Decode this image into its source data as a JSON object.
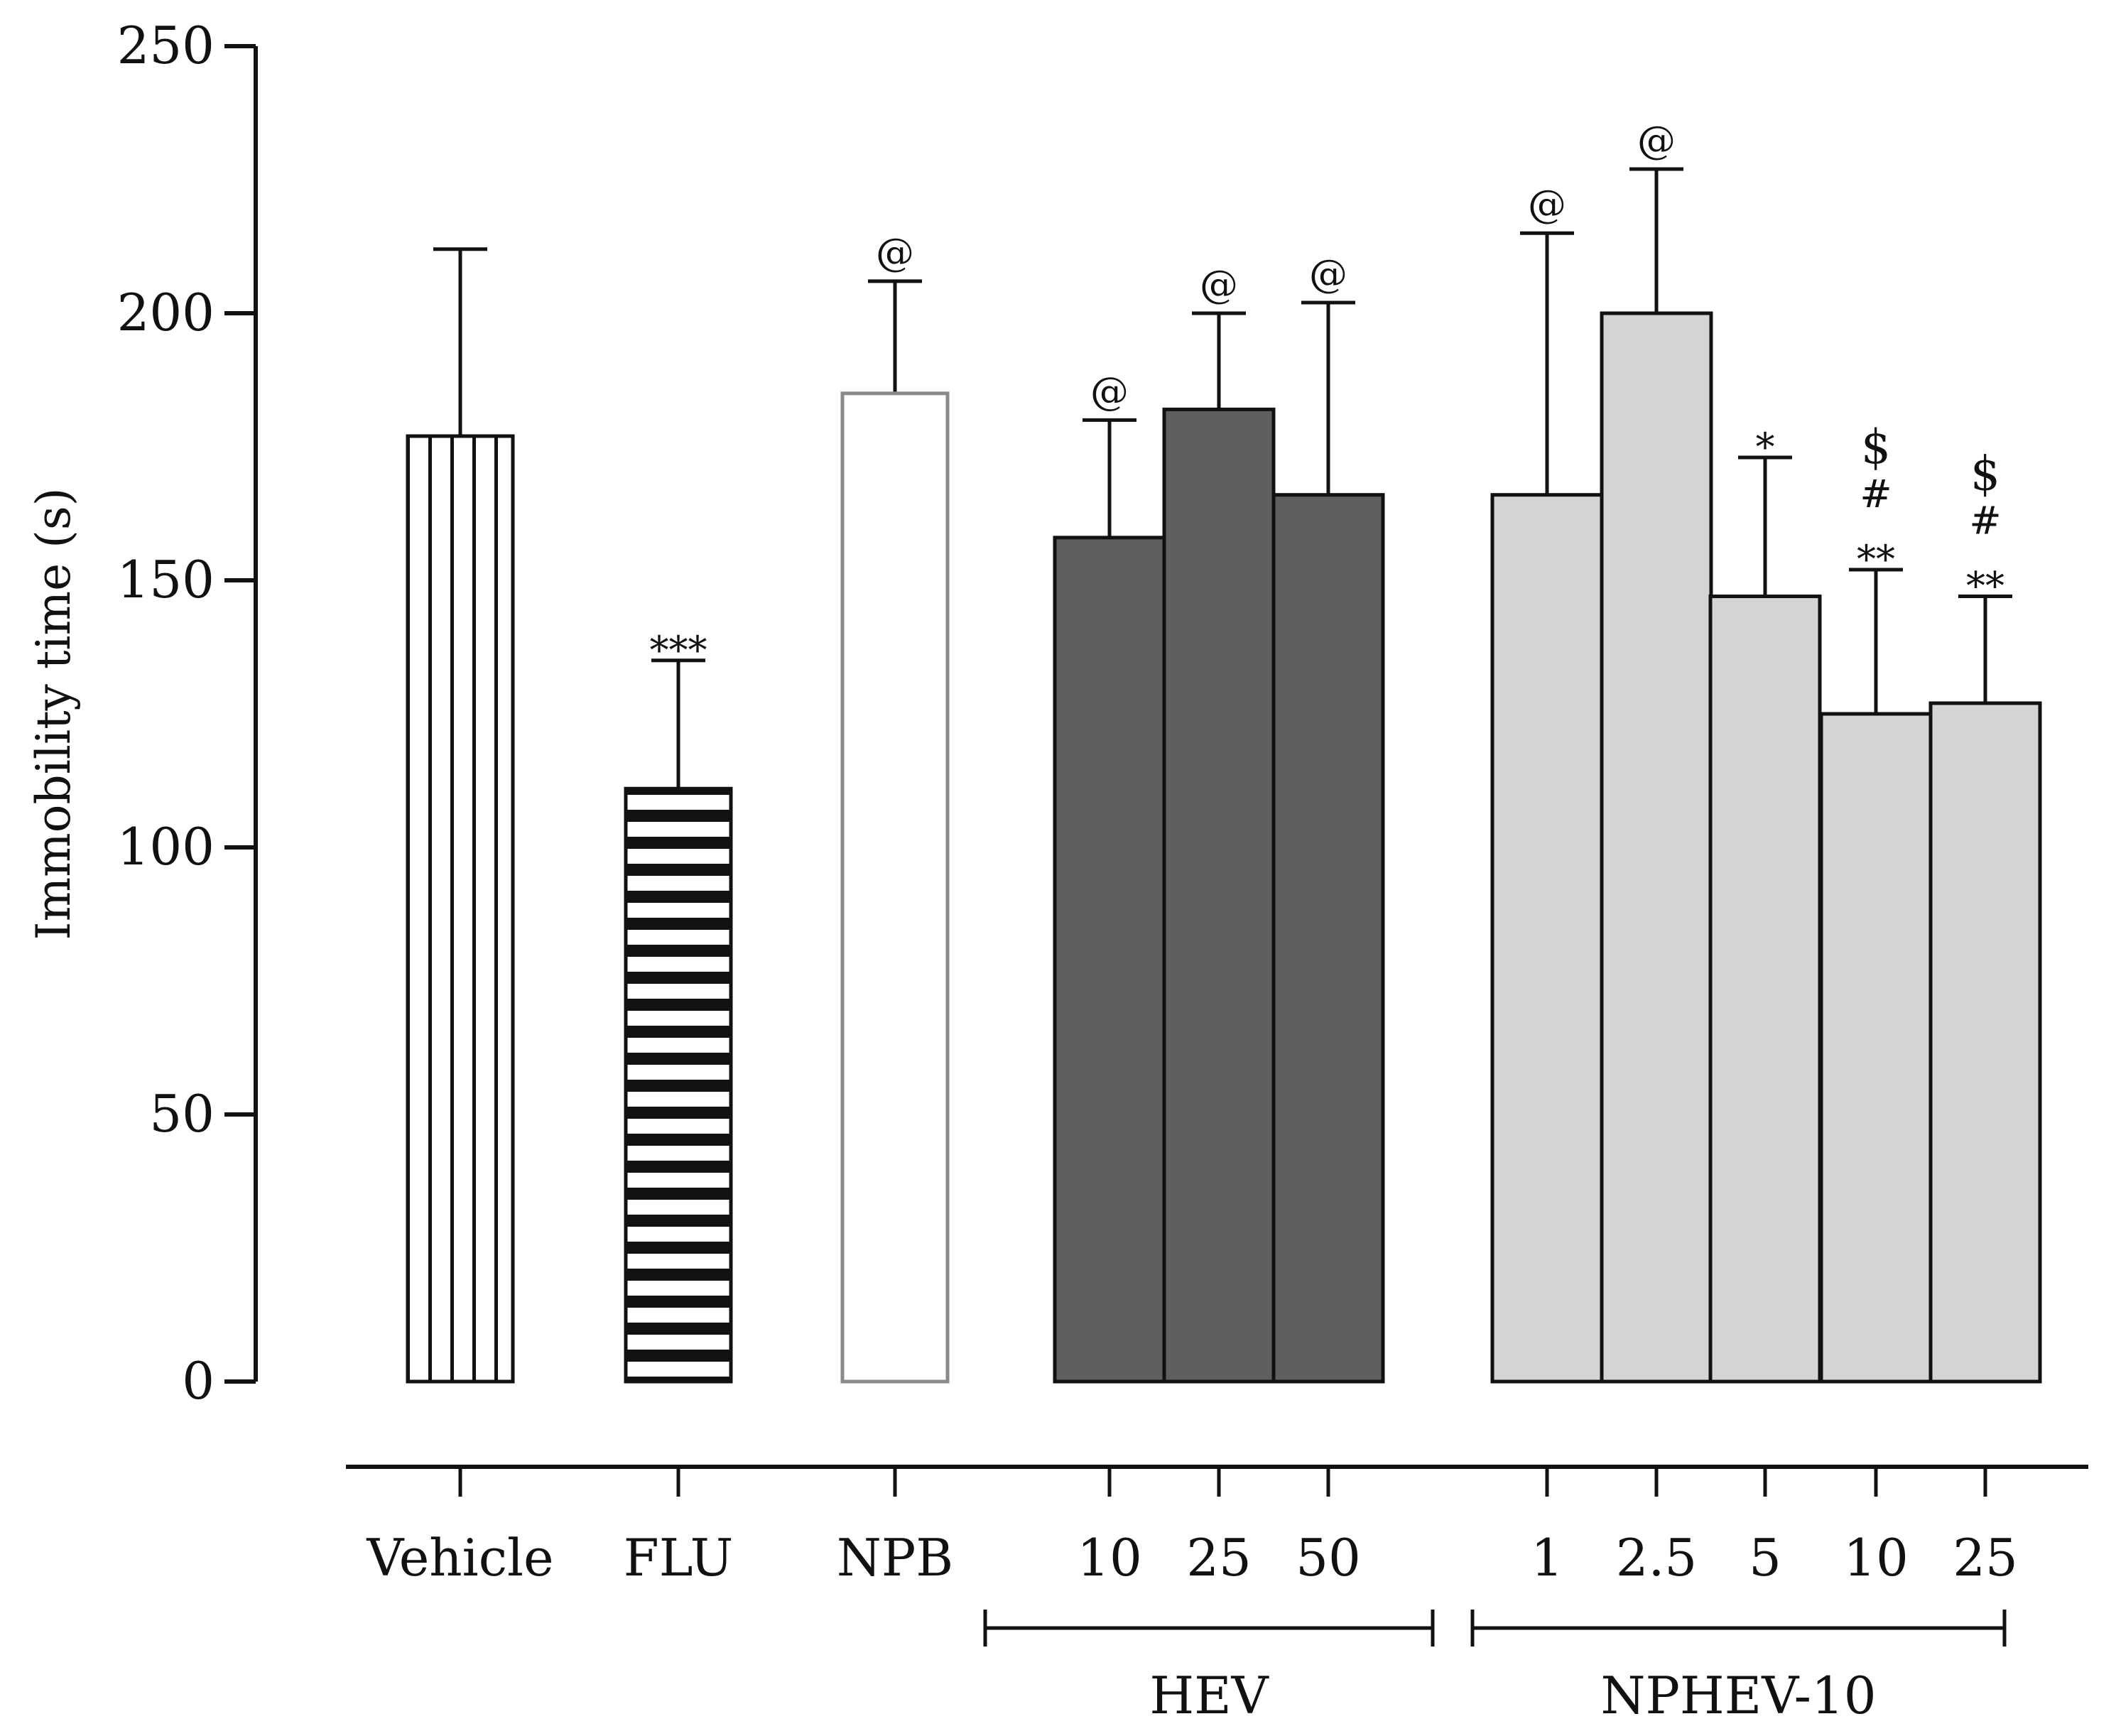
{
  "chart_data": {
    "type": "bar",
    "title": "",
    "ylabel": "Immobility time (s)",
    "xlabel": "",
    "ylim": [
      0,
      250
    ],
    "yticks": [
      0,
      50,
      100,
      150,
      200,
      250
    ],
    "colors": {
      "axis": "#111111",
      "hev_fill": "#5f5f5f",
      "nphev_fill": "#d4d4d4",
      "npb_stroke": "#8a8a8a",
      "pattern_fill": "#ffffff"
    },
    "bars": [
      {
        "label": "Vehicle",
        "value": 177,
        "error": 35,
        "style": "vertical-stripes",
        "annotations": []
      },
      {
        "label": "FLU",
        "value": 111,
        "error": 24,
        "style": "horizontal-stripes",
        "annotations": [
          "***"
        ]
      },
      {
        "label": "NPB",
        "value": 185,
        "error": 21,
        "style": "open",
        "annotations": [
          "@"
        ]
      },
      {
        "label": "10",
        "group": "HEV",
        "value": 158,
        "error": 22,
        "style": "dark",
        "annotations": [
          "@"
        ]
      },
      {
        "label": "25",
        "group": "HEV",
        "value": 182,
        "error": 18,
        "style": "dark",
        "annotations": [
          "@"
        ]
      },
      {
        "label": "50",
        "group": "HEV",
        "value": 166,
        "error": 36,
        "style": "dark",
        "annotations": [
          "@"
        ]
      },
      {
        "label": "1",
        "group": "NPHEV-10",
        "value": 166,
        "error": 49,
        "style": "light",
        "annotations": [
          "@"
        ]
      },
      {
        "label": "2.5",
        "group": "NPHEV-10",
        "value": 200,
        "error": 27,
        "style": "light",
        "annotations": [
          "@"
        ]
      },
      {
        "label": "5",
        "group": "NPHEV-10",
        "value": 147,
        "error": 26,
        "style": "light",
        "annotations": [
          "*"
        ]
      },
      {
        "label": "10",
        "group": "NPHEV-10",
        "value": 125,
        "error": 27,
        "style": "light",
        "annotations": [
          "**",
          "#",
          "$"
        ]
      },
      {
        "label": "25",
        "group": "NPHEV-10",
        "value": 127,
        "error": 20,
        "style": "light",
        "annotations": [
          "**",
          "#",
          "$"
        ]
      }
    ],
    "groups": [
      {
        "name": "HEV",
        "first": 3,
        "last": 5
      },
      {
        "name": "NPHEV-10",
        "first": 6,
        "last": 10
      }
    ]
  }
}
